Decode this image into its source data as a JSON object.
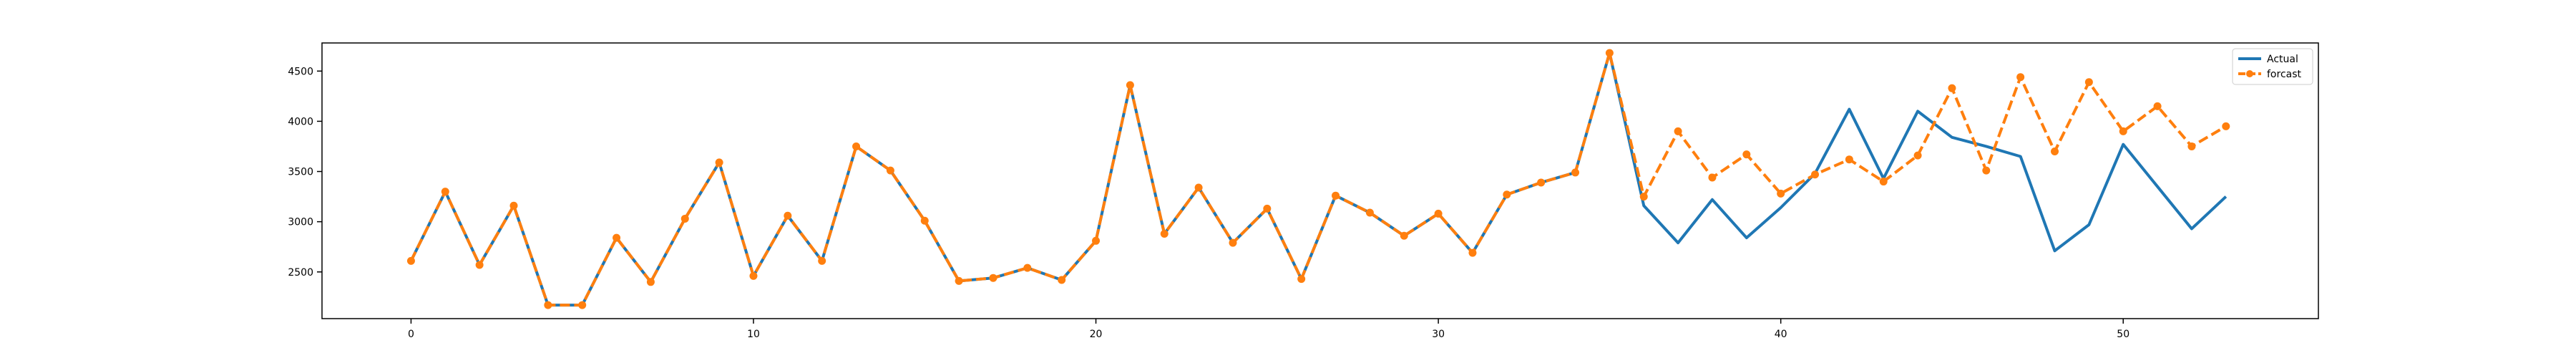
{
  "chart_data": {
    "type": "line",
    "xlim": [
      -2.6,
      55.7
    ],
    "ylim": [
      2035,
      4780
    ],
    "xticks": [
      0,
      10,
      20,
      30,
      40,
      50
    ],
    "yticks": [
      2500,
      3000,
      3500,
      4000,
      4500
    ],
    "legend_position": "top-right",
    "series": [
      {
        "name": "Actual",
        "color": "#1f77b4",
        "style": "solid",
        "x": [
          0,
          1,
          2,
          3,
          4,
          5,
          6,
          7,
          8,
          9,
          10,
          11,
          12,
          13,
          14,
          15,
          16,
          17,
          18,
          19,
          20,
          21,
          22,
          23,
          24,
          25,
          26,
          27,
          28,
          29,
          30,
          31,
          32,
          33,
          34,
          35,
          36,
          37,
          38,
          39,
          40,
          41,
          42,
          43,
          44,
          45,
          46,
          47,
          48,
          49,
          50,
          51,
          52,
          53
        ],
        "values": [
          2610,
          3300,
          2570,
          3160,
          2170,
          2170,
          2840,
          2400,
          3030,
          3590,
          2460,
          3060,
          2610,
          3750,
          3510,
          3010,
          2410,
          2440,
          2540,
          2420,
          2810,
          4360,
          2880,
          3340,
          2790,
          3130,
          2430,
          3260,
          3090,
          2860,
          3080,
          2690,
          3270,
          3390,
          3490,
          4680,
          3160,
          2790,
          3220,
          2840,
          3140,
          3480,
          4120,
          3430,
          4100,
          3840,
          3750,
          3650,
          2710,
          2970,
          3770,
          3350,
          2930,
          3250
        ]
      },
      {
        "name": "forcast",
        "color": "#ff7f0e",
        "style": "dashed",
        "marker": "circle",
        "x": [
          0,
          1,
          2,
          3,
          4,
          5,
          6,
          7,
          8,
          9,
          10,
          11,
          12,
          13,
          14,
          15,
          16,
          17,
          18,
          19,
          20,
          21,
          22,
          23,
          24,
          25,
          26,
          27,
          28,
          29,
          30,
          31,
          32,
          33,
          34,
          35,
          36,
          37,
          38,
          39,
          40,
          41,
          42,
          43,
          44,
          45,
          46,
          47,
          48,
          49,
          50,
          51,
          52,
          53
        ],
        "values": [
          2610,
          3300,
          2570,
          3160,
          2170,
          2170,
          2840,
          2400,
          3030,
          3590,
          2460,
          3060,
          2610,
          3750,
          3510,
          3010,
          2410,
          2440,
          2540,
          2420,
          2810,
          4360,
          2880,
          3340,
          2790,
          3130,
          2430,
          3260,
          3090,
          2860,
          3080,
          2690,
          3270,
          3390,
          3490,
          4680,
          3250,
          3900,
          3440,
          3670,
          3280,
          3470,
          3620,
          3400,
          3660,
          4330,
          3510,
          4440,
          3700,
          4390,
          3900,
          4150,
          3750,
          3950
        ]
      }
    ]
  }
}
